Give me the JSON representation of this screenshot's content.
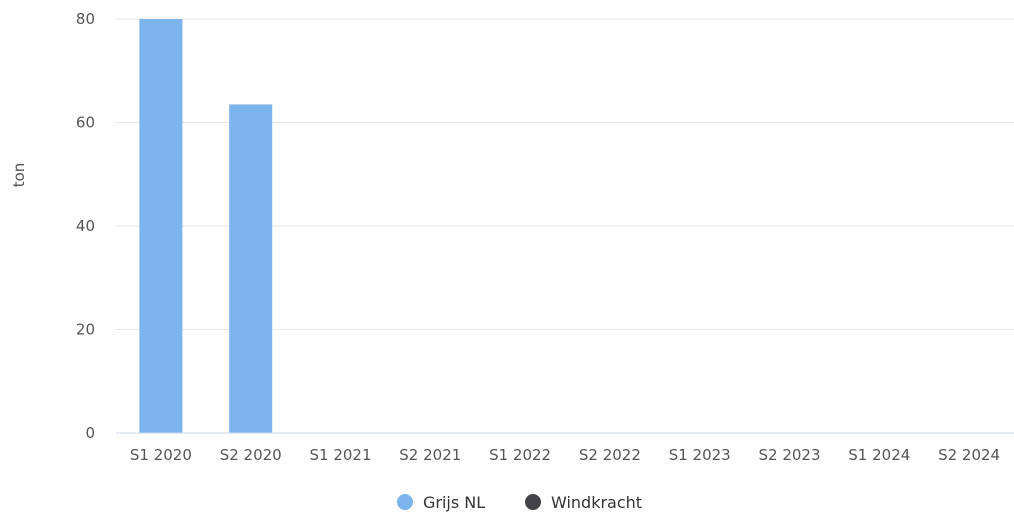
{
  "chart_data": {
    "type": "bar",
    "categories": [
      "S1 2020",
      "S2 2020",
      "S1 2021",
      "S2 2021",
      "S1 2022",
      "S2 2022",
      "S1 2023",
      "S2 2023",
      "S1 2024",
      "S2 2024"
    ],
    "series": [
      {
        "name": "Grijs NL",
        "color": "#7cb5ec",
        "values": [
          80,
          63.5,
          0,
          0,
          0,
          0,
          0,
          0,
          0,
          0
        ]
      },
      {
        "name": "Windkracht",
        "color": "#434348",
        "values": [
          0,
          0,
          0,
          0,
          0,
          0,
          0,
          0,
          0,
          0
        ]
      }
    ],
    "ylabel": "ton",
    "ylim": [
      0,
      80
    ],
    "yticks": [
      0,
      20,
      40,
      60,
      80
    ],
    "grid": true,
    "legend_position": "bottom-center"
  }
}
